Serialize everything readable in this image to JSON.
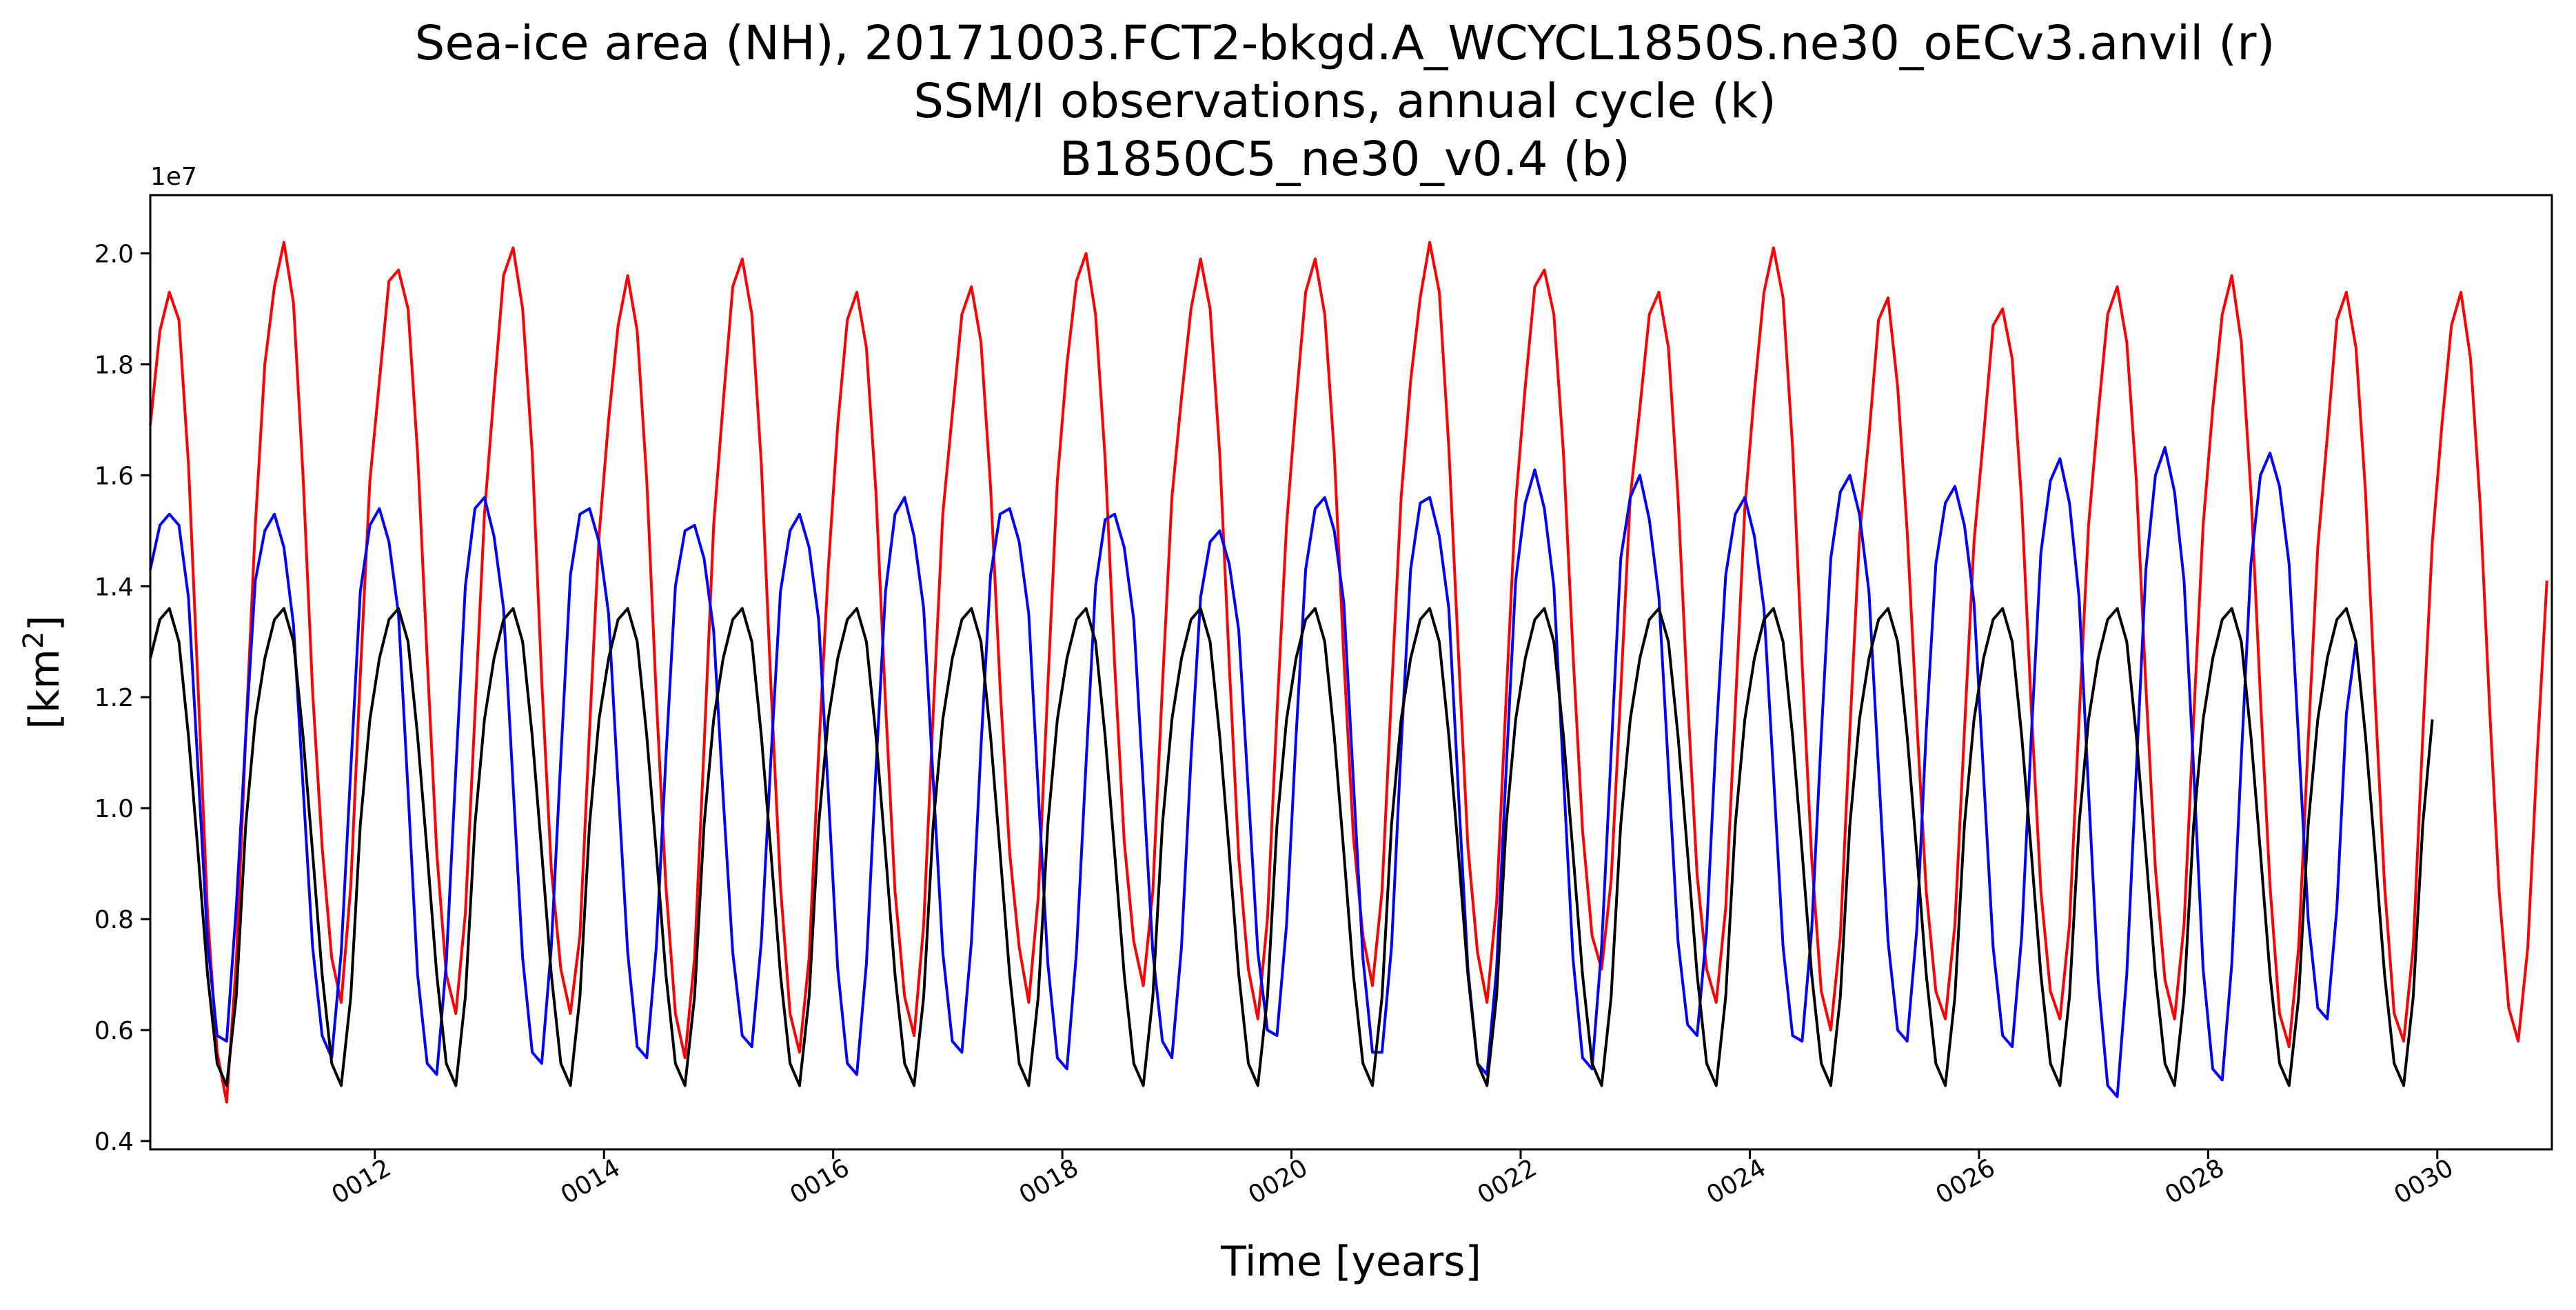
{
  "chart_data": {
    "type": "line",
    "title_lines": [
      "Sea-ice area (NH), 20171003.FCT2-bkgd.A_WCYCL1850S.ne30_oECv3.anvil (r)",
      "SSM/I observations, annual cycle (k)",
      "B1850C5_ne30_v0.4 (b)"
    ],
    "xlabel": "Time [years]",
    "ylabel_base": "[km",
    "ylabel_sup": "2",
    "ylabel_end": "]",
    "y_offset_label": "1e7",
    "y_multiplier": 10000000,
    "x_unit": "years",
    "xlim": [
      10.04,
      31.0
    ],
    "ylim": [
      0.385,
      2.105
    ],
    "x_ticks": [
      12,
      14,
      16,
      18,
      20,
      22,
      24,
      26,
      28,
      30
    ],
    "x_tick_labels": [
      "0012",
      "0014",
      "0016",
      "0018",
      "0020",
      "0022",
      "0024",
      "0026",
      "0028",
      "0030"
    ],
    "y_ticks": [
      0.4,
      0.6,
      0.8,
      1.0,
      1.2,
      1.4,
      1.6,
      1.8,
      2.0
    ],
    "y_tick_labels": [
      "0.4",
      "0.6",
      "0.8",
      "1.0",
      "1.2",
      "1.4",
      "1.6",
      "1.8",
      "2.0"
    ],
    "grid": false,
    "legend": "none",
    "time_start_year": 10.04,
    "samples_per_year": 12,
    "series": [
      {
        "color": "#ff0000",
        "annual_max": [
          1.93,
          2.02,
          1.97,
          2.01,
          1.96,
          1.99,
          1.93,
          1.94,
          2.0,
          1.99,
          1.99,
          2.02,
          1.97,
          1.93,
          2.01,
          1.92,
          1.9,
          1.94,
          1.96,
          1.93,
          1.93
        ],
        "annual_min": [
          0.47,
          0.65,
          0.63,
          0.63,
          0.55,
          0.56,
          0.59,
          0.65,
          0.68,
          0.62,
          0.68,
          0.65,
          0.71,
          0.65,
          0.6,
          0.62,
          0.62,
          0.62,
          0.57,
          0.58,
          0.58
        ],
        "values": [
          1.69,
          1.86,
          1.93,
          1.88,
          1.62,
          1.22,
          0.81,
          0.56,
          0.47,
          0.72,
          1.13,
          1.51,
          1.8,
          1.94,
          2.02,
          1.91,
          1.6,
          1.21,
          0.93,
          0.73,
          0.65,
          0.86,
          1.24,
          1.59,
          1.77,
          1.95,
          1.97,
          1.9,
          1.64,
          1.27,
          0.92,
          0.7,
          0.63,
          0.81,
          1.17,
          1.53,
          1.75,
          1.96,
          2.01,
          1.9,
          1.64,
          1.23,
          0.89,
          0.71,
          0.63,
          0.77,
          1.14,
          1.49,
          1.7,
          1.87,
          1.96,
          1.86,
          1.59,
          1.2,
          0.86,
          0.63,
          0.55,
          0.73,
          1.11,
          1.51,
          1.73,
          1.94,
          1.99,
          1.89,
          1.62,
          1.22,
          0.86,
          0.63,
          0.56,
          0.73,
          1.1,
          1.43,
          1.69,
          1.88,
          1.93,
          1.83,
          1.57,
          1.19,
          0.85,
          0.66,
          0.59,
          0.79,
          1.17,
          1.53,
          1.71,
          1.89,
          1.94,
          1.84,
          1.58,
          1.22,
          0.92,
          0.75,
          0.65,
          0.84,
          1.22,
          1.59,
          1.8,
          1.95,
          2.0,
          1.89,
          1.63,
          1.26,
          0.94,
          0.76,
          0.68,
          0.85,
          1.22,
          1.56,
          1.74,
          1.9,
          1.99,
          1.9,
          1.64,
          1.26,
          0.91,
          0.71,
          0.62,
          0.8,
          1.17,
          1.51,
          1.73,
          1.93,
          1.99,
          1.89,
          1.64,
          1.27,
          0.95,
          0.77,
          0.68,
          0.85,
          1.21,
          1.56,
          1.77,
          1.92,
          2.02,
          1.93,
          1.65,
          1.28,
          0.93,
          0.74,
          0.65,
          0.83,
          1.2,
          1.55,
          1.76,
          1.94,
          1.97,
          1.89,
          1.64,
          1.28,
          0.96,
          0.77,
          0.71,
          0.87,
          1.21,
          1.56,
          1.72,
          1.89,
          1.93,
          1.83,
          1.56,
          1.2,
          0.88,
          0.71,
          0.65,
          0.82,
          1.18,
          1.54,
          1.75,
          1.93,
          2.01,
          1.92,
          1.65,
          1.26,
          0.91,
          0.67,
          0.6,
          0.77,
          1.14,
          1.49,
          1.67,
          1.88,
          1.92,
          1.76,
          1.5,
          1.16,
          0.85,
          0.67,
          0.62,
          0.79,
          1.14,
          1.48,
          1.67,
          1.87,
          1.9,
          1.81,
          1.55,
          1.18,
          0.85,
          0.67,
          0.62,
          0.79,
          1.16,
          1.51,
          1.71,
          1.89,
          1.94,
          1.84,
          1.59,
          1.22,
          0.89,
          0.69,
          0.62,
          0.79,
          1.16,
          1.51,
          1.72,
          1.89,
          1.96,
          1.84,
          1.57,
          1.2,
          0.86,
          0.63,
          0.57,
          0.75,
          1.12,
          1.47,
          1.67,
          1.88,
          1.93,
          1.83,
          1.57,
          1.2,
          0.86,
          0.63,
          0.58,
          0.75,
          1.13,
          1.48,
          1.69,
          1.87,
          1.93,
          1.81,
          1.55,
          1.18,
          0.85,
          0.64,
          0.58,
          0.75,
          1.1,
          1.41
        ]
      },
      {
        "color": "#0000ff",
        "annual_max": [
          1.53,
          1.53,
          1.54,
          1.56,
          1.54,
          1.51,
          1.53,
          1.56,
          1.54,
          1.53,
          1.5,
          1.56,
          1.56,
          1.61,
          1.6,
          1.56,
          1.6,
          1.58,
          1.63,
          1.65,
          1.64
        ],
        "annual_min": [
          0.59,
          0.55,
          0.52,
          0.54,
          0.55,
          0.57,
          0.52,
          0.56,
          0.53,
          0.55,
          0.59,
          0.56,
          0.52,
          0.53,
          0.59,
          0.58,
          0.58,
          0.57,
          0.48,
          0.51,
          0.62
        ],
        "values": [
          1.43,
          1.51,
          1.53,
          1.51,
          1.38,
          1.07,
          0.76,
          0.59,
          0.58,
          0.82,
          1.13,
          1.41,
          1.5,
          1.53,
          1.47,
          1.33,
          1.04,
          0.75,
          0.59,
          0.55,
          0.74,
          1.07,
          1.39,
          1.51,
          1.54,
          1.48,
          1.35,
          1.03,
          0.7,
          0.54,
          0.52,
          0.72,
          1.07,
          1.4,
          1.54,
          1.56,
          1.49,
          1.36,
          1.04,
          0.73,
          0.56,
          0.54,
          0.75,
          1.09,
          1.42,
          1.53,
          1.54,
          1.48,
          1.35,
          1.04,
          0.74,
          0.57,
          0.55,
          0.75,
          1.09,
          1.4,
          1.5,
          1.51,
          1.45,
          1.32,
          1.02,
          0.74,
          0.59,
          0.57,
          0.76,
          1.09,
          1.39,
          1.5,
          1.53,
          1.47,
          1.34,
          1.03,
          0.71,
          0.54,
          0.52,
          0.72,
          1.07,
          1.39,
          1.53,
          1.56,
          1.49,
          1.36,
          1.05,
          0.74,
          0.58,
          0.56,
          0.76,
          1.11,
          1.42,
          1.53,
          1.54,
          1.48,
          1.35,
          1.03,
          0.72,
          0.55,
          0.53,
          0.74,
          1.08,
          1.4,
          1.52,
          1.53,
          1.47,
          1.34,
          1.04,
          0.74,
          0.58,
          0.55,
          0.75,
          1.09,
          1.38,
          1.48,
          1.5,
          1.44,
          1.32,
          1.03,
          0.74,
          0.6,
          0.59,
          0.79,
          1.13,
          1.43,
          1.54,
          1.56,
          1.5,
          1.37,
          1.05,
          0.73,
          0.56,
          0.56,
          0.75,
          1.11,
          1.43,
          1.55,
          1.56,
          1.49,
          1.36,
          1.03,
          0.71,
          0.54,
          0.52,
          0.71,
          1.07,
          1.41,
          1.55,
          1.61,
          1.54,
          1.4,
          1.06,
          0.73,
          0.55,
          0.53,
          0.75,
          1.1,
          1.45,
          1.56,
          1.6,
          1.52,
          1.38,
          1.07,
          0.76,
          0.61,
          0.59,
          0.78,
          1.13,
          1.42,
          1.53,
          1.56,
          1.49,
          1.36,
          1.06,
          0.75,
          0.59,
          0.58,
          0.78,
          1.13,
          1.45,
          1.57,
          1.6,
          1.53,
          1.39,
          1.07,
          0.76,
          0.6,
          0.58,
          0.78,
          1.14,
          1.44,
          1.55,
          1.58,
          1.51,
          1.37,
          1.06,
          0.75,
          0.59,
          0.57,
          0.77,
          1.13,
          1.46,
          1.59,
          1.63,
          1.55,
          1.38,
          1.03,
          0.69,
          0.5,
          0.48,
          0.7,
          1.07,
          1.43,
          1.6,
          1.65,
          1.57,
          1.41,
          1.07,
          0.71,
          0.53,
          0.51,
          0.72,
          1.09,
          1.44,
          1.6,
          1.64,
          1.58,
          1.44,
          1.12,
          0.8,
          0.64,
          0.62,
          0.82,
          1.17,
          1.3
        ]
      },
      {
        "color": "#000000",
        "annual_max": 1.36,
        "annual_min": 0.5,
        "values": [
          1.27,
          1.34,
          1.36,
          1.3,
          1.13,
          0.92,
          0.7,
          0.54,
          0.5,
          0.66,
          0.97,
          1.16,
          1.27,
          1.34,
          1.36,
          1.3,
          1.13,
          0.92,
          0.7,
          0.54,
          0.5,
          0.66,
          0.97,
          1.16,
          1.27,
          1.34,
          1.36,
          1.3,
          1.13,
          0.92,
          0.7,
          0.54,
          0.5,
          0.66,
          0.97,
          1.16,
          1.27,
          1.34,
          1.36,
          1.3,
          1.13,
          0.92,
          0.7,
          0.54,
          0.5,
          0.66,
          0.97,
          1.16,
          1.27,
          1.34,
          1.36,
          1.3,
          1.13,
          0.92,
          0.7,
          0.54,
          0.5,
          0.66,
          0.97,
          1.16,
          1.27,
          1.34,
          1.36,
          1.3,
          1.13,
          0.92,
          0.7,
          0.54,
          0.5,
          0.66,
          0.97,
          1.16,
          1.27,
          1.34,
          1.36,
          1.3,
          1.13,
          0.92,
          0.7,
          0.54,
          0.5,
          0.66,
          0.97,
          1.16,
          1.27,
          1.34,
          1.36,
          1.3,
          1.13,
          0.92,
          0.7,
          0.54,
          0.5,
          0.66,
          0.97,
          1.16,
          1.27,
          1.34,
          1.36,
          1.3,
          1.13,
          0.92,
          0.7,
          0.54,
          0.5,
          0.66,
          0.97,
          1.16,
          1.27,
          1.34,
          1.36,
          1.3,
          1.13,
          0.92,
          0.7,
          0.54,
          0.5,
          0.66,
          0.97,
          1.16,
          1.27,
          1.34,
          1.36,
          1.3,
          1.13,
          0.92,
          0.7,
          0.54,
          0.5,
          0.66,
          0.97,
          1.16,
          1.27,
          1.34,
          1.36,
          1.3,
          1.13,
          0.92,
          0.7,
          0.54,
          0.5,
          0.66,
          0.97,
          1.16,
          1.27,
          1.34,
          1.36,
          1.3,
          1.13,
          0.92,
          0.7,
          0.54,
          0.5,
          0.66,
          0.97,
          1.16,
          1.27,
          1.34,
          1.36,
          1.3,
          1.13,
          0.92,
          0.7,
          0.54,
          0.5,
          0.66,
          0.97,
          1.16,
          1.27,
          1.34,
          1.36,
          1.3,
          1.13,
          0.92,
          0.7,
          0.54,
          0.5,
          0.66,
          0.97,
          1.16,
          1.27,
          1.34,
          1.36,
          1.3,
          1.13,
          0.92,
          0.7,
          0.54,
          0.5,
          0.66,
          0.97,
          1.16,
          1.27,
          1.34,
          1.36,
          1.3,
          1.13,
          0.92,
          0.7,
          0.54,
          0.5,
          0.66,
          0.97,
          1.16,
          1.27,
          1.34,
          1.36,
          1.3,
          1.13,
          0.92,
          0.7,
          0.54,
          0.5,
          0.66,
          0.97,
          1.16,
          1.27,
          1.34,
          1.36,
          1.3,
          1.13,
          0.92,
          0.7,
          0.54,
          0.5,
          0.66,
          0.97,
          1.16,
          1.27,
          1.34,
          1.36,
          1.3,
          1.13,
          0.92,
          0.7,
          0.54,
          0.5,
          0.66,
          0.97,
          1.16
        ]
      }
    ]
  }
}
